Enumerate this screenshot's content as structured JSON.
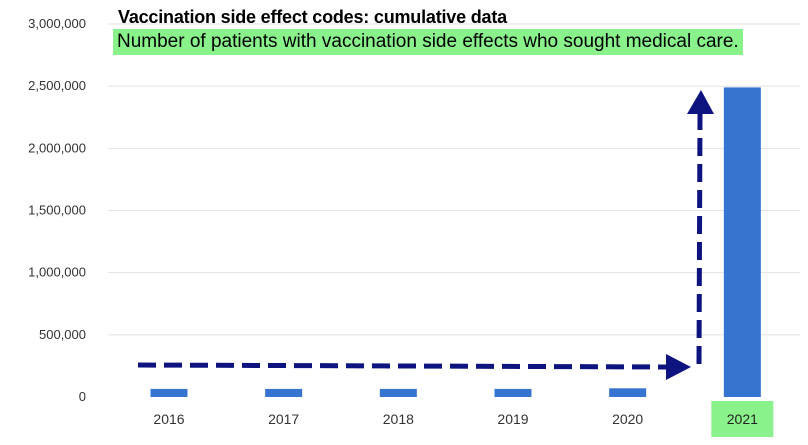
{
  "chart_data": {
    "type": "bar",
    "title": "Vaccination side effect codes: cumulative data",
    "subtitle": "Number of patients with vaccination side effects who sought medical care.",
    "categories": [
      "2016",
      "2017",
      "2018",
      "2019",
      "2020",
      "2021"
    ],
    "values": [
      65000,
      65000,
      65000,
      65000,
      70000,
      2490000
    ],
    "ylim": [
      0,
      3000000
    ],
    "yticks": [
      0,
      500000,
      1000000,
      1500000,
      2000000,
      2500000,
      3000000
    ],
    "ytick_labels": [
      "0",
      "500,000",
      "1,000,000",
      "1,500,000",
      "2,000,000",
      "2,500,000",
      "3,000,000"
    ],
    "xlabel": "",
    "ylabel": "",
    "grid": true,
    "highlighted_category": "2021",
    "annotation": "dashed arrow across 2016–2020 level, then up toward 2021 bar"
  },
  "colors": {
    "bar": "#3574d0",
    "highlight": "#8af28a",
    "arrow": "#0d1480",
    "grid": "#e2e2e2",
    "tick_text": "#333333"
  }
}
